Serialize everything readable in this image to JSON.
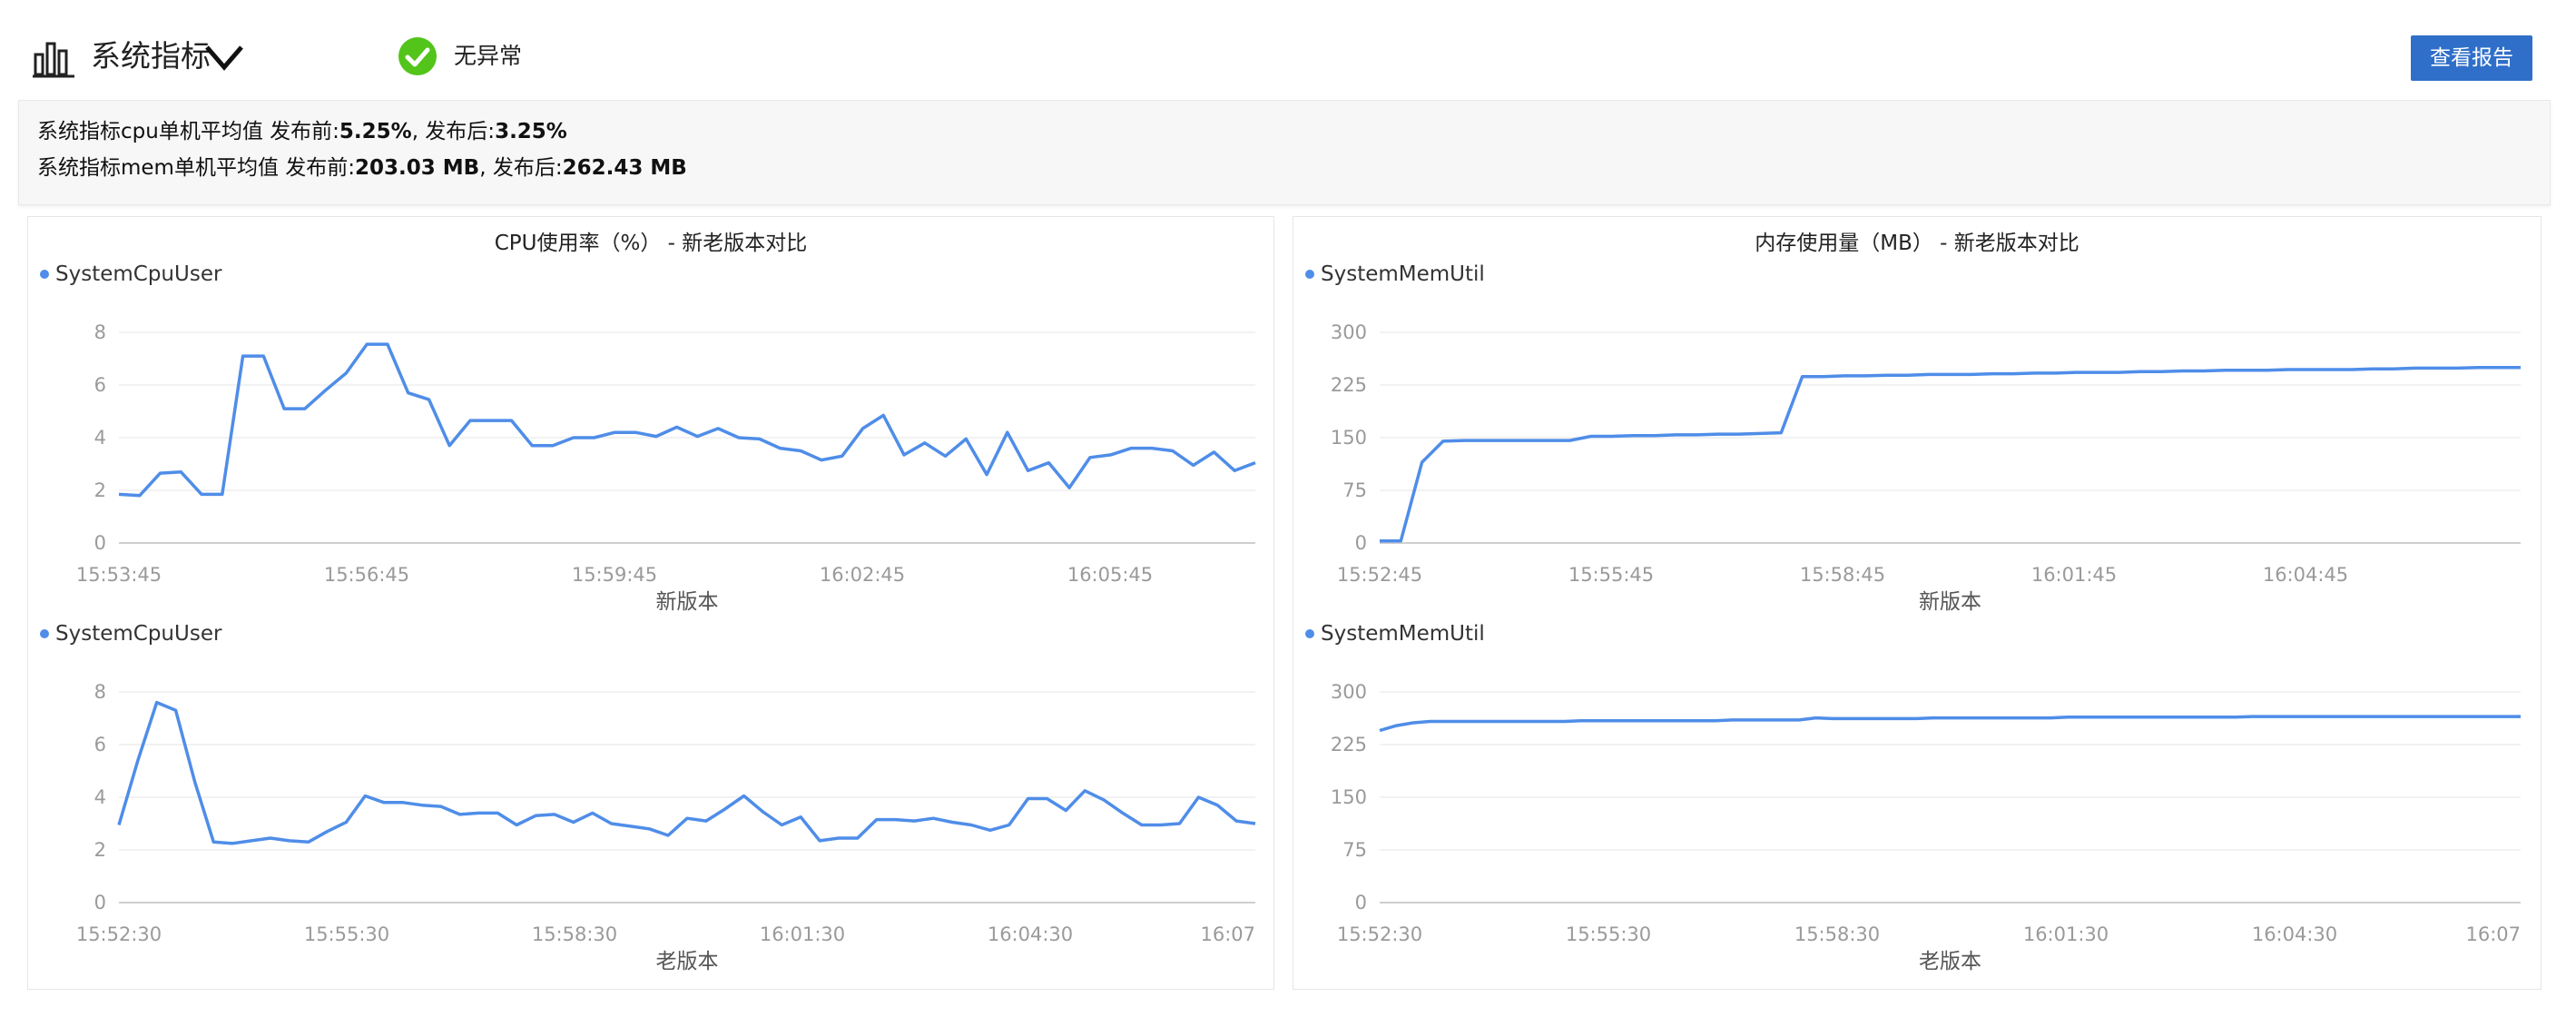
{
  "header": {
    "title": "系统指标",
    "status_text": "无异常",
    "report_button": "查看报告",
    "colors": {
      "status_ok": "#52c41a",
      "button": "#2f6fc9",
      "series": "#4f8de8"
    },
    "icons": [
      "bar-chart-icon",
      "chevron-down-icon",
      "check-circle-icon"
    ]
  },
  "summary": {
    "cpu": {
      "prefix": "系统指标cpu单机平均值 发布前:",
      "before": "5.25%",
      "mid": ", 发布后:",
      "after": "3.25%"
    },
    "mem": {
      "prefix": "系统指标mem单机平均值 发布前:",
      "before": "203.03 MB",
      "mid": ", 发布后:",
      "after": "262.43 MB"
    }
  },
  "chart_data": [
    {
      "type": "line",
      "title": "CPU使用率（%） - 新老版本对比",
      "xlabel": "新版本",
      "legend": "SystemCpuUser",
      "ylim": [
        0,
        8
      ],
      "yticks": [
        0,
        2,
        4,
        6,
        8
      ],
      "xticks": [
        "15:53:45",
        "15:56:45",
        "15:59:45",
        "16:02:45",
        "16:05:45"
      ],
      "values": [
        1.85,
        1.8,
        2.65,
        2.7,
        1.85,
        1.85,
        7.1,
        7.1,
        5.1,
        5.1,
        5.8,
        6.45,
        7.55,
        7.55,
        5.7,
        5.45,
        3.7,
        4.65,
        4.65,
        4.65,
        3.7,
        3.7,
        4.0,
        4.0,
        4.2,
        4.2,
        4.05,
        4.4,
        4.05,
        4.35,
        4.0,
        3.95,
        3.6,
        3.5,
        3.15,
        3.3,
        4.35,
        4.85,
        3.35,
        3.8,
        3.3,
        3.95,
        2.6,
        4.2,
        2.75,
        3.05,
        2.1,
        3.25,
        3.35,
        3.6,
        3.6,
        3.5,
        2.95,
        3.45,
        2.75,
        3.05
      ]
    },
    {
      "type": "line",
      "title": "内存使用量（MB） - 新老版本对比",
      "xlabel": "新版本",
      "legend": "SystemMemUtil",
      "ylim": [
        0,
        300
      ],
      "yticks": [
        0,
        75,
        150,
        225,
        300
      ],
      "xticks": [
        "15:52:45",
        "15:55:45",
        "15:58:45",
        "16:01:45",
        "16:04:45"
      ],
      "values": [
        3,
        3,
        115,
        145,
        146,
        146,
        146,
        146,
        146,
        146,
        152,
        152,
        153,
        153,
        154,
        154,
        155,
        155,
        156,
        157,
        237,
        237,
        238,
        238,
        239,
        239,
        240,
        240,
        240,
        241,
        241,
        242,
        242,
        243,
        243,
        243,
        244,
        244,
        245,
        245,
        246,
        246,
        246,
        247,
        247,
        247,
        247,
        248,
        248,
        249,
        249,
        249,
        250,
        250,
        250
      ]
    },
    {
      "type": "line",
      "xlabel": "老版本",
      "legend": "SystemCpuUser",
      "ylim": [
        0,
        8
      ],
      "yticks": [
        0,
        2,
        4,
        6,
        8
      ],
      "xticks": [
        "15:52:30",
        "15:55:30",
        "15:58:30",
        "16:01:30",
        "16:04:30",
        "16:07"
      ],
      "values": [
        2.95,
        5.4,
        7.6,
        7.3,
        4.6,
        2.3,
        2.25,
        2.35,
        2.45,
        2.35,
        2.3,
        2.7,
        3.05,
        4.05,
        3.8,
        3.8,
        3.7,
        3.65,
        3.35,
        3.4,
        3.4,
        2.95,
        3.3,
        3.35,
        3.05,
        3.4,
        3.0,
        2.9,
        2.8,
        2.55,
        3.2,
        3.1,
        3.55,
        4.05,
        3.45,
        2.95,
        3.25,
        2.35,
        2.45,
        2.45,
        3.15,
        3.15,
        3.1,
        3.2,
        3.05,
        2.95,
        2.75,
        2.95,
        3.95,
        3.95,
        3.5,
        4.25,
        3.9,
        3.4,
        2.95,
        2.95,
        3.0,
        4.0,
        3.7,
        3.1,
        3.0
      ]
    },
    {
      "type": "line",
      "xlabel": "老版本",
      "legend": "SystemMemUtil",
      "ylim": [
        0,
        300
      ],
      "yticks": [
        0,
        75,
        150,
        225,
        300
      ],
      "xticks": [
        "15:52:30",
        "15:55:30",
        "15:58:30",
        "16:01:30",
        "16:04:30",
        "16:07"
      ],
      "values": [
        245,
        252,
        256,
        258,
        258,
        258,
        258,
        258,
        258,
        258,
        258,
        258,
        259,
        259,
        259,
        259,
        259,
        259,
        259,
        259,
        259,
        260,
        260,
        260,
        260,
        260,
        263,
        262,
        262,
        262,
        262,
        262,
        262,
        263,
        263,
        263,
        263,
        263,
        263,
        263,
        263,
        264,
        264,
        264,
        264,
        264,
        264,
        264,
        264,
        264,
        264,
        264,
        265,
        265,
        265,
        265,
        265,
        265,
        265,
        265,
        265,
        265,
        265,
        265,
        265,
        265,
        265,
        265,
        265
      ]
    }
  ]
}
